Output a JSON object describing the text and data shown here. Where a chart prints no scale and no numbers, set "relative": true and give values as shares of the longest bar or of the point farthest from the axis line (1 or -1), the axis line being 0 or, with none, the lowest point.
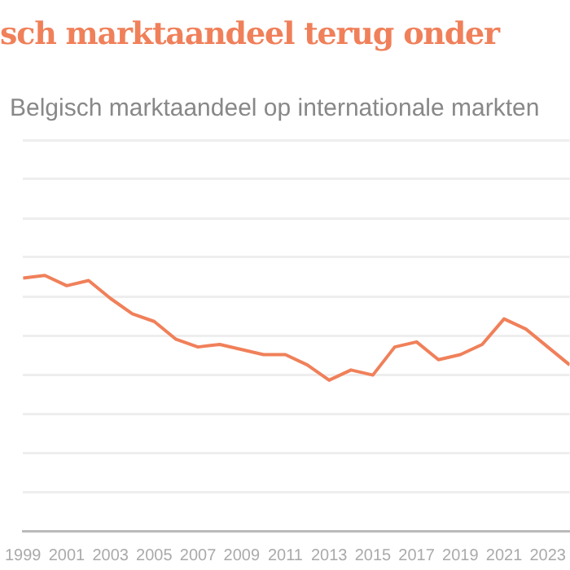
{
  "chart_data": {
    "type": "line",
    "title": "sch marktaandeel terug onder",
    "subtitle": "Belgisch marktaandeel op internationale markten",
    "relative": true,
    "x": [
      1999,
      2000,
      2001,
      2002,
      2003,
      2004,
      2005,
      2006,
      2007,
      2008,
      2009,
      2010,
      2011,
      2012,
      2013,
      2014,
      2015,
      2016,
      2017,
      2018,
      2019,
      2020,
      2021,
      2022,
      2023,
      2024
    ],
    "xlim": [
      1999,
      2024
    ],
    "xticks": [
      1999,
      2001,
      2003,
      2005,
      2007,
      2009,
      2011,
      2013,
      2015,
      2017,
      2019,
      2021,
      2023
    ],
    "series": [
      {
        "color": "#f0805a",
        "values": [
          0.99,
          1,
          0.96,
          0.98,
          0.91,
          0.85,
          0.82,
          0.75,
          0.72,
          0.73,
          0.71,
          0.69,
          0.69,
          0.65,
          0.59,
          0.63,
          0.61,
          0.72,
          0.74,
          0.67,
          0.69,
          0.73,
          0.83,
          0.79,
          0.72,
          0.65
        ]
      }
    ],
    "grid": "y",
    "legend": false,
    "marker": "none",
    "line_style": "solid"
  }
}
